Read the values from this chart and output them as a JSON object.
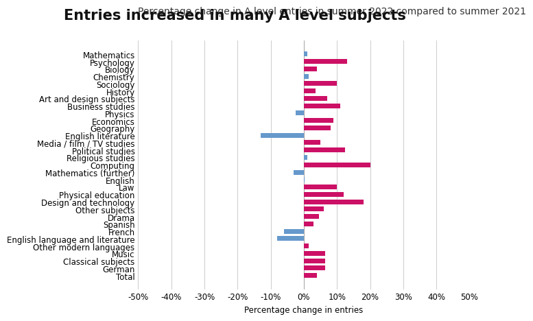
{
  "title": "Entries increased in many A level subjects",
  "subtitle": "Percentage change in A level entries in summer 2022 compared to summer 2021",
  "xlabel": "Percentage change in entries",
  "categories": [
    "Mathematics",
    "Psychology",
    "Biology",
    "Chemistry",
    "Sociology",
    "History",
    "Art and design subjects",
    "Business studies",
    "Physics",
    "Economics",
    "Geography",
    "English literature",
    "Media / film / TV studies",
    "Political studies",
    "Religious studies",
    "Computing",
    "Mathematics (further)",
    "English",
    "Law",
    "Physical education",
    "Design and technology",
    "Other subjects",
    "Drama",
    "Spanish",
    "French",
    "English language and literature",
    "Other modern languages",
    "Music",
    "Classical subjects",
    "German",
    "Total"
  ],
  "values": [
    1.0,
    13.0,
    4.0,
    1.5,
    10.0,
    3.5,
    7.0,
    11.0,
    -2.5,
    9.0,
    8.0,
    -13.0,
    5.0,
    12.5,
    1.0,
    20.0,
    -3.0,
    0.3,
    10.0,
    12.0,
    18.0,
    6.0,
    4.5,
    3.0,
    -6.0,
    -8.0,
    1.5,
    6.5,
    6.5,
    6.5,
    4.0
  ],
  "blue_indices": [
    0,
    3,
    8,
    14,
    16,
    17,
    24,
    25
  ],
  "pink_color": "#CC1066",
  "blue_color": "#6699CC",
  "bg_color": "#FFFFFF",
  "grid_color": "#CCCCCC",
  "xlim": [
    -50,
    50
  ],
  "xticks": [
    -50,
    -40,
    -30,
    -20,
    -10,
    0,
    10,
    20,
    30,
    40,
    50
  ],
  "title_fontsize": 15,
  "subtitle_fontsize": 10,
  "label_fontsize": 8.5,
  "tick_fontsize": 8.5
}
